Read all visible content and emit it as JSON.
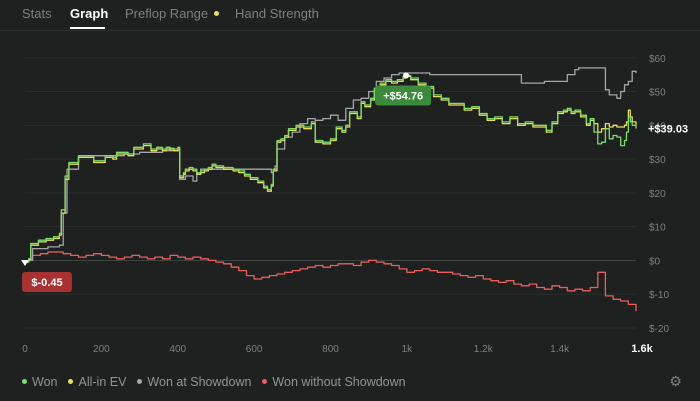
{
  "tabs": [
    {
      "label": "Stats"
    },
    {
      "label": "Graph"
    },
    {
      "label": "Preflop Range"
    },
    {
      "label": "Hand Strength"
    }
  ],
  "colors": {
    "background": "#1f2120",
    "won": "#7ddc6a",
    "all_in_ev": "#e9df5a",
    "showdown": "#a6a6a6",
    "non_showdown": "#e8605a",
    "badge_green": "#3c8a3c",
    "badge_red": "#a83232",
    "tab_dot": "#e9df5a"
  },
  "legend": [
    {
      "label": "Won",
      "color": "#7ddc6a"
    },
    {
      "label": "All-in EV",
      "color": "#e9df5a"
    },
    {
      "label": "Won at Showdown",
      "color": "#a6a6a6"
    },
    {
      "label": "Won without Showdown",
      "color": "#e8605a"
    }
  ],
  "settings_icon": "gear-icon",
  "chart_data": {
    "type": "line",
    "xlim": [
      0,
      1600
    ],
    "ylim": [
      -20,
      62
    ],
    "x_ticks": [
      {
        "value": 0,
        "label": "0"
      },
      {
        "value": 200,
        "label": "200"
      },
      {
        "value": 400,
        "label": "400"
      },
      {
        "value": 600,
        "label": "600"
      },
      {
        "value": 800,
        "label": "800"
      },
      {
        "value": 1000,
        "label": "1k"
      },
      {
        "value": 1200,
        "label": "1.2k"
      },
      {
        "value": 1400,
        "label": "1.4k"
      }
    ],
    "x_end_label": "1.6k",
    "y_ticks": [
      {
        "value": 60,
        "label": "$60"
      },
      {
        "value": 50,
        "label": "$50"
      },
      {
        "value": 40,
        "label": "$40"
      },
      {
        "value": 30,
        "label": "$30"
      },
      {
        "value": 20,
        "label": "$20"
      },
      {
        "value": 10,
        "label": "$10"
      },
      {
        "value": 0,
        "label": "$0"
      },
      {
        "value": -10,
        "label": "$-10"
      },
      {
        "value": -20,
        "label": "$-20"
      }
    ],
    "max_label": "+$54.76",
    "max_point": [
      998,
      54.76
    ],
    "min_label": "$-0.45",
    "min_point": [
      0,
      -0.45
    ],
    "final_label": "+$39.03",
    "series": [
      {
        "name": "Won",
        "color": "#7ddc6a",
        "x": [
          0,
          10,
          15,
          35,
          55,
          75,
          90,
          95,
          105,
          115,
          140,
          180,
          210,
          230,
          240,
          270,
          285,
          310,
          330,
          345,
          360,
          370,
          380,
          390,
          400,
          405,
          415,
          420,
          430,
          440,
          450,
          460,
          470,
          480,
          490,
          500,
          520,
          545,
          560,
          575,
          590,
          610,
          625,
          635,
          645,
          650,
          660,
          670,
          680,
          690,
          700,
          710,
          730,
          750,
          760,
          780,
          800,
          815,
          830,
          840,
          850,
          870,
          880,
          890,
          905,
          915,
          930,
          945,
          960,
          975,
          990,
          998,
          1010,
          1030,
          1050,
          1070,
          1090,
          1110,
          1130,
          1150,
          1170,
          1190,
          1210,
          1230,
          1250,
          1270,
          1290,
          1310,
          1330,
          1350,
          1365,
          1380,
          1395,
          1410,
          1420,
          1430,
          1440,
          1455,
          1470,
          1480,
          1490,
          1500,
          1510,
          1520,
          1530,
          1540,
          1550,
          1560,
          1570,
          1575,
          1580,
          1585,
          1590,
          1600
        ],
        "values": [
          -0.45,
          0.5,
          5,
          6,
          6.5,
          7,
          8,
          15,
          25,
          29,
          31,
          29.5,
          31,
          30.5,
          32,
          31.5,
          33.5,
          34.5,
          33,
          33.5,
          33,
          33.5,
          33.2,
          33,
          33.5,
          25,
          26,
          27,
          27.5,
          27,
          26,
          26.5,
          27,
          27.5,
          28.5,
          28,
          27.5,
          27,
          26.5,
          25.5,
          24.5,
          23.5,
          22,
          21,
          22.5,
          27,
          35.5,
          36,
          37,
          39,
          39,
          40,
          39.5,
          41,
          35.5,
          35,
          36,
          39.5,
          38.5,
          40,
          44,
          42.5,
          47,
          46,
          48,
          51,
          52.5,
          53.5,
          53,
          53.5,
          54.5,
          54.76,
          54,
          52.5,
          51.5,
          49,
          48,
          46.5,
          46.5,
          45,
          45.5,
          43.5,
          42,
          42.5,
          41,
          42.5,
          40.5,
          41,
          40,
          40,
          38.5,
          41,
          44,
          44.5,
          45,
          44,
          44.5,
          43,
          40.5,
          42,
          38,
          34.5,
          35,
          39,
          36,
          37,
          36.5,
          34,
          35.5,
          38,
          42.5,
          41,
          40,
          39.03
        ]
      },
      {
        "name": "All-in EV",
        "color": "#e9df5a",
        "x": [
          0,
          10,
          15,
          35,
          55,
          75,
          90,
          95,
          105,
          115,
          140,
          180,
          210,
          230,
          240,
          270,
          285,
          310,
          330,
          345,
          360,
          370,
          380,
          390,
          400,
          405,
          415,
          420,
          430,
          440,
          450,
          460,
          470,
          480,
          490,
          500,
          520,
          545,
          560,
          575,
          590,
          610,
          625,
          635,
          645,
          650,
          660,
          670,
          680,
          690,
          700,
          710,
          730,
          750,
          760,
          780,
          800,
          815,
          830,
          840,
          850,
          870,
          880,
          890,
          905,
          915,
          930,
          945,
          960,
          975,
          990,
          998,
          1010,
          1030,
          1050,
          1070,
          1090,
          1110,
          1130,
          1150,
          1170,
          1190,
          1210,
          1230,
          1250,
          1270,
          1290,
          1310,
          1330,
          1350,
          1365,
          1380,
          1395,
          1410,
          1420,
          1430,
          1440,
          1455,
          1470,
          1480,
          1490,
          1500,
          1510,
          1520,
          1530,
          1540,
          1550,
          1560,
          1570,
          1575,
          1580,
          1585,
          1590,
          1600
        ],
        "values": [
          -0.45,
          0.3,
          4.5,
          5.5,
          6,
          6.5,
          7.5,
          14,
          24,
          28.5,
          30.5,
          29,
          30.5,
          30,
          31.5,
          31,
          33,
          34,
          32.5,
          33,
          32.5,
          33,
          32.7,
          32.5,
          33,
          24.5,
          25.5,
          26.5,
          27,
          26.5,
          25.5,
          26,
          26.5,
          27,
          28,
          27.5,
          27,
          26.5,
          26,
          25,
          24,
          23,
          21.5,
          20.5,
          22,
          26.5,
          35,
          35.5,
          36.5,
          38.5,
          38.5,
          39.5,
          39,
          40.5,
          35,
          34.5,
          35.5,
          39,
          38,
          39.5,
          43.5,
          42,
          46.5,
          45.5,
          47.5,
          50.5,
          52,
          53,
          52.5,
          53,
          54,
          54.5,
          53.5,
          52,
          51,
          48.5,
          47.5,
          46,
          46,
          44.5,
          45,
          43,
          41.5,
          42,
          40.5,
          42,
          40,
          40.5,
          39.5,
          39.5,
          38,
          40.5,
          43.5,
          44,
          44.5,
          43.5,
          44,
          42.5,
          40,
          41.5,
          40.5,
          38,
          39,
          40.5,
          39.5,
          40,
          39.5,
          39.5,
          40,
          41,
          44.5,
          42.5,
          41,
          40
        ]
      },
      {
        "name": "Won at Showdown",
        "color": "#a6a6a6",
        "x": [
          0,
          10,
          20,
          60,
          90,
          100,
          110,
          140,
          180,
          200,
          230,
          260,
          300,
          330,
          360,
          380,
          400,
          405,
          420,
          440,
          450,
          460,
          480,
          520,
          560,
          600,
          620,
          640,
          645,
          650,
          655,
          660,
          680,
          700,
          720,
          740,
          760,
          780,
          800,
          820,
          840,
          860,
          880,
          900,
          920,
          940,
          960,
          980,
          998,
          1020,
          1060,
          1100,
          1140,
          1180,
          1220,
          1260,
          1300,
          1340,
          1360,
          1380,
          1400,
          1420,
          1440,
          1450,
          1460,
          1470,
          1480,
          1490,
          1500,
          1510,
          1520,
          1530,
          1540,
          1550,
          1560,
          1570,
          1580,
          1590,
          1600
        ],
        "values": [
          -0.45,
          0,
          3.5,
          4,
          4.5,
          14,
          27,
          31,
          31,
          31,
          31,
          31.5,
          32,
          32,
          32.5,
          32.5,
          32.5,
          24,
          25,
          23.5,
          25.5,
          27,
          27,
          27,
          27,
          27,
          27,
          27,
          26,
          27,
          28,
          33,
          36.5,
          38,
          40.5,
          42,
          41.5,
          42,
          43,
          41.5,
          45,
          47.5,
          48,
          50,
          53,
          54,
          55,
          55.5,
          55.5,
          55.5,
          55,
          55,
          55,
          55,
          55,
          55,
          52.5,
          52.5,
          53,
          53,
          53,
          55,
          56.5,
          57,
          57,
          57,
          57,
          57,
          57,
          57,
          50.5,
          49,
          49,
          48,
          50,
          52,
          53,
          56,
          55.5
        ]
      },
      {
        "name": "Won without Showdown",
        "color": "#e8605a",
        "x": [
          0,
          10,
          20,
          40,
          60,
          80,
          100,
          120,
          140,
          160,
          180,
          200,
          220,
          240,
          260,
          280,
          300,
          320,
          340,
          360,
          380,
          400,
          420,
          440,
          460,
          480,
          500,
          520,
          540,
          560,
          580,
          600,
          620,
          640,
          660,
          680,
          700,
          720,
          740,
          760,
          780,
          800,
          820,
          840,
          860,
          880,
          900,
          920,
          940,
          960,
          980,
          1000,
          1020,
          1040,
          1060,
          1080,
          1100,
          1120,
          1140,
          1160,
          1180,
          1200,
          1220,
          1240,
          1260,
          1280,
          1300,
          1320,
          1340,
          1360,
          1380,
          1400,
          1420,
          1440,
          1460,
          1480,
          1500,
          1520,
          1540,
          1560,
          1580,
          1600
        ],
        "values": [
          -0.45,
          0.5,
          1.5,
          2,
          2.5,
          2.5,
          2,
          1.5,
          1,
          1.5,
          2,
          1.5,
          1,
          0.5,
          1,
          1.5,
          1,
          0.5,
          1,
          0.5,
          1.5,
          1,
          0.5,
          1,
          0.5,
          0,
          -0.5,
          -1,
          -2,
          -3,
          -4.5,
          -5.5,
          -5,
          -4.5,
          -4,
          -3.5,
          -3,
          -2.5,
          -2,
          -1.5,
          -2,
          -1.5,
          -1,
          -1,
          -1.5,
          -0.5,
          0,
          -0.5,
          -1,
          -1.5,
          -2.5,
          -3.5,
          -3,
          -2.5,
          -3,
          -3.5,
          -3.5,
          -4,
          -4.5,
          -5,
          -4.5,
          -5.5,
          -6,
          -6.5,
          -6,
          -7,
          -7.5,
          -7,
          -8,
          -8.5,
          -7.5,
          -8,
          -9,
          -8.5,
          -9,
          -8,
          -3.5,
          -10.5,
          -11.5,
          -12,
          -13,
          -15
        ]
      }
    ]
  }
}
